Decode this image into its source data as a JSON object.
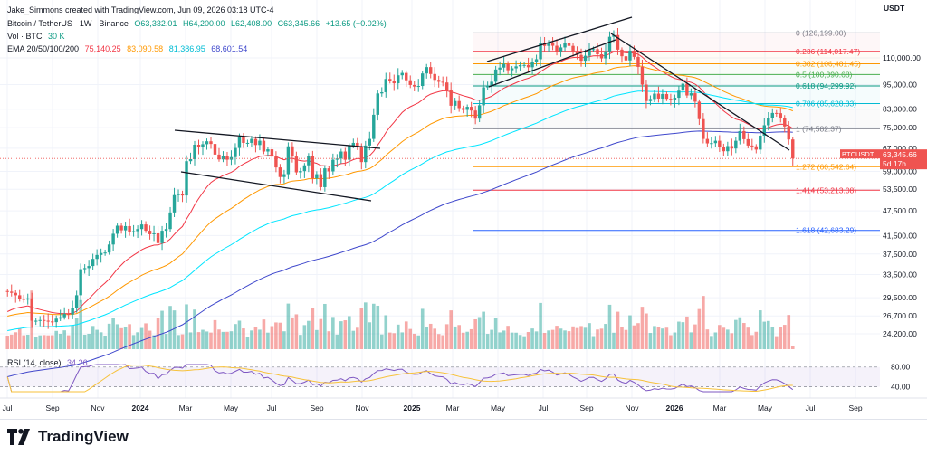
{
  "header": {
    "created_by": "Jake_Simmons created with TradingView.com, Jun 09, 2026 03:18 UTC-4",
    "symbol_line": "Bitcoin / TetherUS · 1W · Binance",
    "ohlc": {
      "o": "O63,332.01",
      "h": "H64,200.00",
      "l": "L62,408.00",
      "c": "C63,345.66",
      "chg": "+13.65 (+0.02%)"
    },
    "vol_label": "Vol · BTC",
    "vol_value": "30 K",
    "ema_label": "EMA 20/50/100/200",
    "ema_values": [
      "75,140.25",
      "83,090.58",
      "81,386.95",
      "68,601.54"
    ]
  },
  "axis": {
    "currency": "USDT",
    "price_ticks": [
      "110,000.00",
      "95,000.00",
      "83,000.00",
      "75,000.00",
      "67,000.00",
      "59,000.00",
      "53,500.00",
      "47,500.00",
      "41,500.00",
      "37,500.00",
      "33,500.00",
      "29,500.00",
      "26,700.00",
      "24,200.00"
    ],
    "rsi_ticks": [
      "80.00",
      "40.00"
    ],
    "time_ticks": [
      "Jul",
      "Sep",
      "Nov",
      "2024",
      "Mar",
      "May",
      "Jul",
      "Sep",
      "Nov",
      "2025",
      "Mar",
      "May",
      "Jul",
      "Sep",
      "Nov",
      "2026",
      "Mar",
      "May",
      "Jul",
      "Sep"
    ]
  },
  "price_tag": {
    "symbol": "BTCUSDT",
    "price": "63,345.66",
    "countdown": "5d 17h"
  },
  "fib_levels": [
    {
      "label": "0 (126,199.00)",
      "price": 126199,
      "color": "#787b86"
    },
    {
      "label": "0.236 (114,017.47)",
      "price": 114017.47,
      "color": "#f23645"
    },
    {
      "label": "0.382 (106,481.45)",
      "price": 106481.45,
      "color": "#ff9800"
    },
    {
      "label": "0.5 (100,390.68)",
      "price": 100390.68,
      "color": "#4caf50"
    },
    {
      "label": "0.618 (94,299.92)",
      "price": 94299.92,
      "color": "#089981"
    },
    {
      "label": "0.786 (85,628.33)",
      "price": 85628.33,
      "color": "#00bcd4"
    },
    {
      "label": "1 (74,582.37)",
      "price": 74582.37,
      "color": "#787b86"
    },
    {
      "label": "1.272 (60,542.64)",
      "price": 60542.64,
      "color": "#ff9800"
    },
    {
      "label": "1.414 (53,213.08)",
      "price": 53213.08,
      "color": "#f23645"
    },
    {
      "label": "1.618 (42,683.29)",
      "price": 42683.29,
      "color": "#2962ff"
    }
  ],
  "rsi": {
    "label": "RSI (14, close)",
    "value": "34.26",
    "upper": 80,
    "lower": 40
  },
  "colors": {
    "up": "#26a69a",
    "down": "#ef5350",
    "ema20": "#f23645",
    "ema50": "#ff9800",
    "ema100": "#00e5ff",
    "ema200": "#3f48cc",
    "rsi": "#7e57c2"
  },
  "chart_data": {
    "type": "candlestick",
    "title": "Bitcoin / TetherUS · 1W · Binance",
    "y_scale": "log",
    "series_weekly_approx": {
      "start": "2023-06-26",
      "interval": "1W",
      "close": [
        30500,
        30300,
        29900,
        29300,
        29200,
        29400,
        26000,
        26000,
        26100,
        26000,
        25900,
        25800,
        26300,
        26500,
        27000,
        26900,
        27900,
        29900,
        34500,
        34700,
        35100,
        36500,
        37300,
        37700,
        37800,
        39500,
        41900,
        43800,
        42700,
        43700,
        42300,
        42500,
        43000,
        44100,
        42600,
        41800,
        42000,
        39800,
        42600,
        43000,
        47100,
        51800,
        52100,
        51700,
        62400,
        63100,
        68300,
        67300,
        68500,
        69600,
        68600,
        64700,
        63000,
        64100,
        62900,
        63800,
        67100,
        71300,
        69000,
        69000,
        70500,
        68200,
        69800,
        65800,
        66600,
        64000,
        60300,
        57200,
        58100,
        67700,
        64000,
        58700,
        59100,
        61000,
        64100,
        56800,
        58100,
        54100,
        60000,
        59000,
        62900,
        63300,
        65800,
        62900,
        67800,
        69000,
        67300,
        62100,
        68000,
        70500,
        80500,
        90500,
        91100,
        98000,
        97000,
        95700,
        100000,
        101300,
        97300,
        94800,
        94000,
        94300,
        101000,
        104600,
        100700,
        97500,
        96500,
        96100,
        92300,
        84600,
        86800,
        83500,
        82700,
        84100,
        82400,
        78800,
        84800,
        93600,
        94300,
        96500,
        103200,
        104300,
        106500,
        102800,
        103900,
        105000,
        105700,
        105800,
        104500,
        107700,
        109200,
        119100,
        117500,
        119800,
        117600,
        114100,
        116500,
        119300,
        117500,
        114300,
        111800,
        108300,
        111300,
        115200,
        115400,
        112200,
        109700,
        114000,
        123500,
        124700,
        115100,
        111000,
        108500,
        114500,
        110600,
        104700,
        95000,
        86800,
        87800,
        90400,
        88000,
        90200,
        87900,
        87400,
        88400,
        91900,
        95500,
        89500,
        90600,
        86500,
        78600,
        70500,
        68800,
        68900,
        69800,
        67500,
        65900,
        67800,
        66900,
        69800,
        73600,
        70400,
        68000,
        67700,
        66500,
        71800,
        76000,
        79000,
        81300,
        81200,
        79000,
        75500,
        70300,
        63345.66
      ]
    },
    "fib_retracement": {
      "from": 126199,
      "to": 74582.37
    },
    "ema": {
      "ema20": 75140.25,
      "ema50": 83090.58,
      "ema100": 81386.95,
      "ema200": 68601.54
    },
    "rsi_last": 34.26,
    "volume_last": "30 K",
    "last_close": 63345.66
  }
}
